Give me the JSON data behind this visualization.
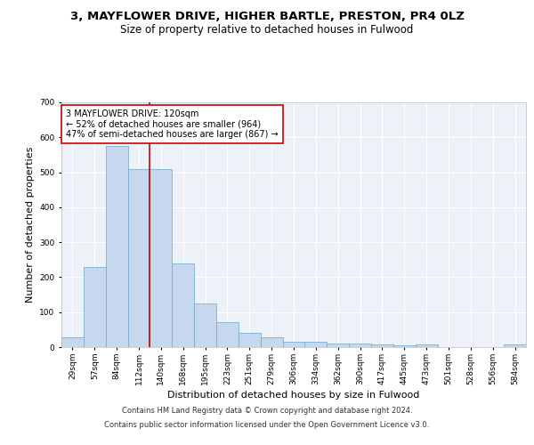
{
  "title_line1": "3, MAYFLOWER DRIVE, HIGHER BARTLE, PRESTON, PR4 0LZ",
  "title_line2": "Size of property relative to detached houses in Fulwood",
  "xlabel": "Distribution of detached houses by size in Fulwood",
  "ylabel": "Number of detached properties",
  "categories": [
    "29sqm",
    "57sqm",
    "84sqm",
    "112sqm",
    "140sqm",
    "168sqm",
    "195sqm",
    "223sqm",
    "251sqm",
    "279sqm",
    "306sqm",
    "334sqm",
    "362sqm",
    "390sqm",
    "417sqm",
    "445sqm",
    "473sqm",
    "501sqm",
    "528sqm",
    "556sqm",
    "584sqm"
  ],
  "values": [
    27,
    230,
    575,
    510,
    510,
    240,
    125,
    72,
    40,
    27,
    16,
    15,
    11,
    11,
    7,
    6,
    8,
    0,
    0,
    0,
    7
  ],
  "bar_color": "#c5d8ed",
  "bar_edge_color": "#7aafd4",
  "bar_edge_width": 0.6,
  "vline_x": 3.5,
  "vline_color": "#cc0000",
  "annotation_line1": "3 MAYFLOWER DRIVE: 120sqm",
  "annotation_line2": "← 52% of detached houses are smaller (964)",
  "annotation_line3": "47% of semi-detached houses are larger (867) →",
  "annotation_box_color": "#ffffff",
  "annotation_box_edge": "#cc0000",
  "ylim": [
    0,
    700
  ],
  "yticks": [
    0,
    100,
    200,
    300,
    400,
    500,
    600,
    700
  ],
  "footer_line1": "Contains HM Land Registry data © Crown copyright and database right 2024.",
  "footer_line2": "Contains public sector information licensed under the Open Government Licence v3.0.",
  "background_color": "#edf2f9",
  "grid_color": "#ffffff",
  "title_fontsize": 9.5,
  "subtitle_fontsize": 8.5,
  "axis_label_fontsize": 8,
  "tick_fontsize": 6.5,
  "footer_fontsize": 6,
  "annotation_fontsize": 7
}
